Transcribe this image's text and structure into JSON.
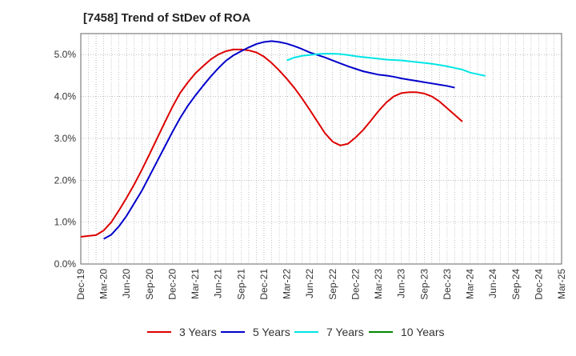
{
  "chart_data": {
    "type": "line",
    "title": "[7458]  Trend of StDev of ROA",
    "xlabel": "",
    "ylabel": "",
    "ylim": [
      0,
      5.5
    ],
    "y_ticks": [
      0,
      1,
      2,
      3,
      4,
      5
    ],
    "y_tick_labels": [
      "0.0%",
      "1.0%",
      "2.0%",
      "3.0%",
      "4.0%",
      "5.0%"
    ],
    "x_labels": [
      "Dec-19",
      "Mar-20",
      "Jun-20",
      "Sep-20",
      "Dec-20",
      "Mar-21",
      "Jun-21",
      "Sep-21",
      "Dec-21",
      "Mar-22",
      "Jun-22",
      "Sep-22",
      "Dec-22",
      "Mar-23",
      "Jun-23",
      "Sep-23",
      "Dec-23",
      "Mar-24",
      "Jun-24",
      "Sep-24",
      "Dec-24",
      "Mar-25"
    ],
    "grid": true,
    "legend_position": "bottom",
    "series": [
      {
        "name": "3 Years",
        "color": "#dd0000",
        "start_index": 0,
        "values": [
          0.65,
          0.67,
          0.69,
          0.8,
          1.0,
          1.28,
          1.58,
          1.9,
          2.25,
          2.62,
          3.0,
          3.38,
          3.75,
          4.08,
          4.33,
          4.55,
          4.72,
          4.88,
          5.0,
          5.08,
          5.12,
          5.12,
          5.1,
          5.05,
          4.95,
          4.8,
          4.62,
          4.42,
          4.2,
          3.95,
          3.68,
          3.4,
          3.12,
          2.92,
          2.83,
          2.87,
          3.02,
          3.2,
          3.42,
          3.65,
          3.85,
          4.0,
          4.08,
          4.1,
          4.1,
          4.07,
          4.0,
          3.88,
          3.72,
          3.56,
          3.4
        ]
      },
      {
        "name": "5 Years",
        "color": "#0000cc",
        "start_index": 3,
        "values": [
          0.6,
          0.7,
          0.9,
          1.15,
          1.45,
          1.75,
          2.1,
          2.45,
          2.8,
          3.15,
          3.48,
          3.77,
          4.02,
          4.25,
          4.47,
          4.67,
          4.85,
          4.98,
          5.08,
          5.17,
          5.25,
          5.3,
          5.32,
          5.3,
          5.26,
          5.2,
          5.13,
          5.05,
          4.99,
          4.93,
          4.86,
          4.79,
          4.72,
          4.66,
          4.6,
          4.56,
          4.52,
          4.5,
          4.47,
          4.43,
          4.4,
          4.37,
          4.34,
          4.31,
          4.28,
          4.25,
          4.21
        ]
      },
      {
        "name": "7 Years",
        "color": "#00e5e5",
        "start_index": 27,
        "values": [
          4.86,
          4.93,
          4.97,
          4.99,
          5.01,
          5.02,
          5.02,
          5.01,
          4.99,
          4.96,
          4.94,
          4.92,
          4.9,
          4.88,
          4.87,
          4.86,
          4.84,
          4.82,
          4.8,
          4.78,
          4.75,
          4.72,
          4.68,
          4.64,
          4.57,
          4.53,
          4.49
        ]
      },
      {
        "name": "10 Years",
        "color": "#008800",
        "start_index": 0,
        "values": []
      }
    ]
  }
}
